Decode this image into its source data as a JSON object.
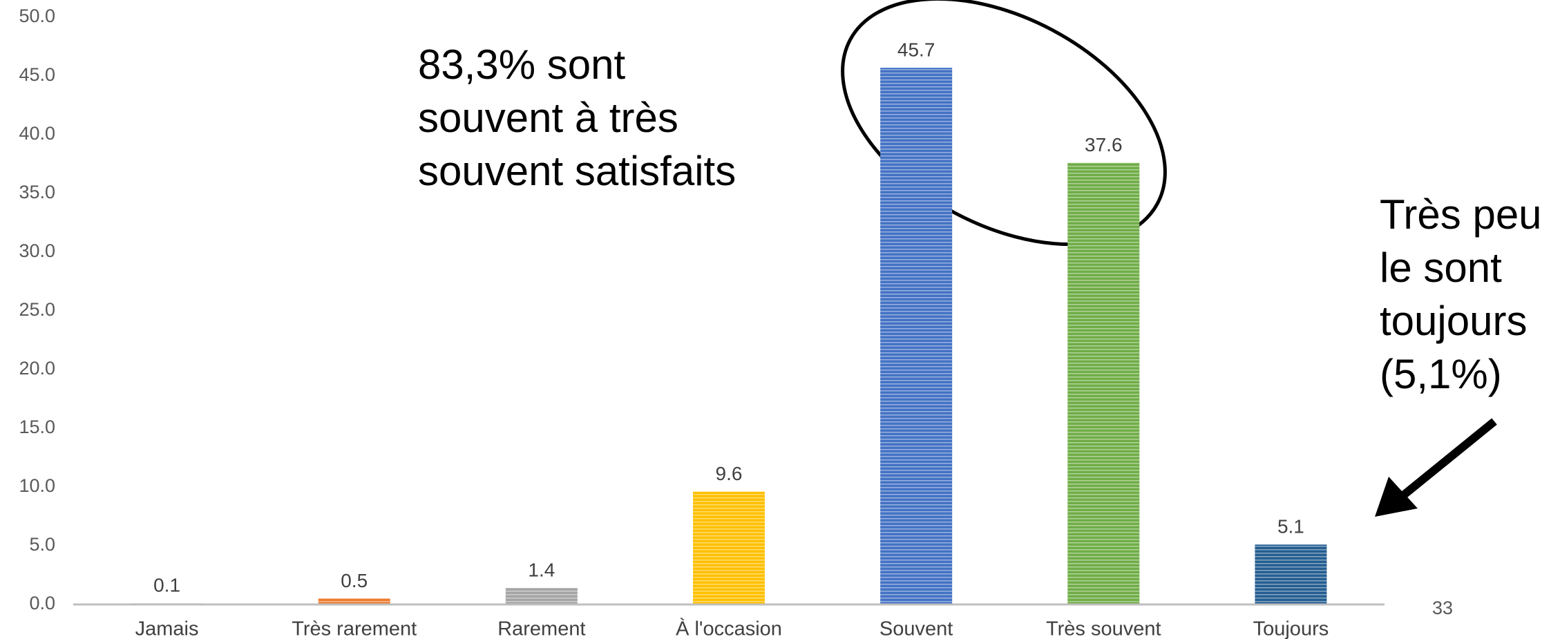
{
  "chart_data": {
    "type": "bar",
    "categories": [
      "Jamais",
      "Très rarement",
      "Rarement",
      "À l'occasion",
      "Souvent",
      "Très souvent",
      "Toujours"
    ],
    "values": [
      0.1,
      0.5,
      1.4,
      9.6,
      45.7,
      37.6,
      5.1
    ],
    "colors": [
      "#bfbfbf",
      "#ed7d31",
      "#a5a5a5",
      "#ffc000",
      "#4472c4",
      "#70ad47",
      "#255e91"
    ],
    "ylim": [
      0,
      50
    ],
    "yticks": [
      {
        "value": 0,
        "label": "0.0"
      },
      {
        "value": 5,
        "label": "5.0"
      },
      {
        "value": 10,
        "label": "10.0"
      },
      {
        "value": 15,
        "label": "15.0"
      },
      {
        "value": 20,
        "label": "20.0"
      },
      {
        "value": 25,
        "label": "25.0"
      },
      {
        "value": 30,
        "label": "30.0"
      },
      {
        "value": 35,
        "label": "35.0"
      },
      {
        "value": 40,
        "label": "40.0"
      },
      {
        "value": 45,
        "label": "45.0"
      },
      {
        "value": 50,
        "label": "50.0"
      }
    ],
    "annotations": [
      [
        "83,3% sont",
        "souvent à très",
        "souvent satisfaits"
      ],
      [
        "Très peu",
        "le sont",
        "toujours",
        "(5,1%)"
      ]
    ],
    "page_number": "33"
  }
}
